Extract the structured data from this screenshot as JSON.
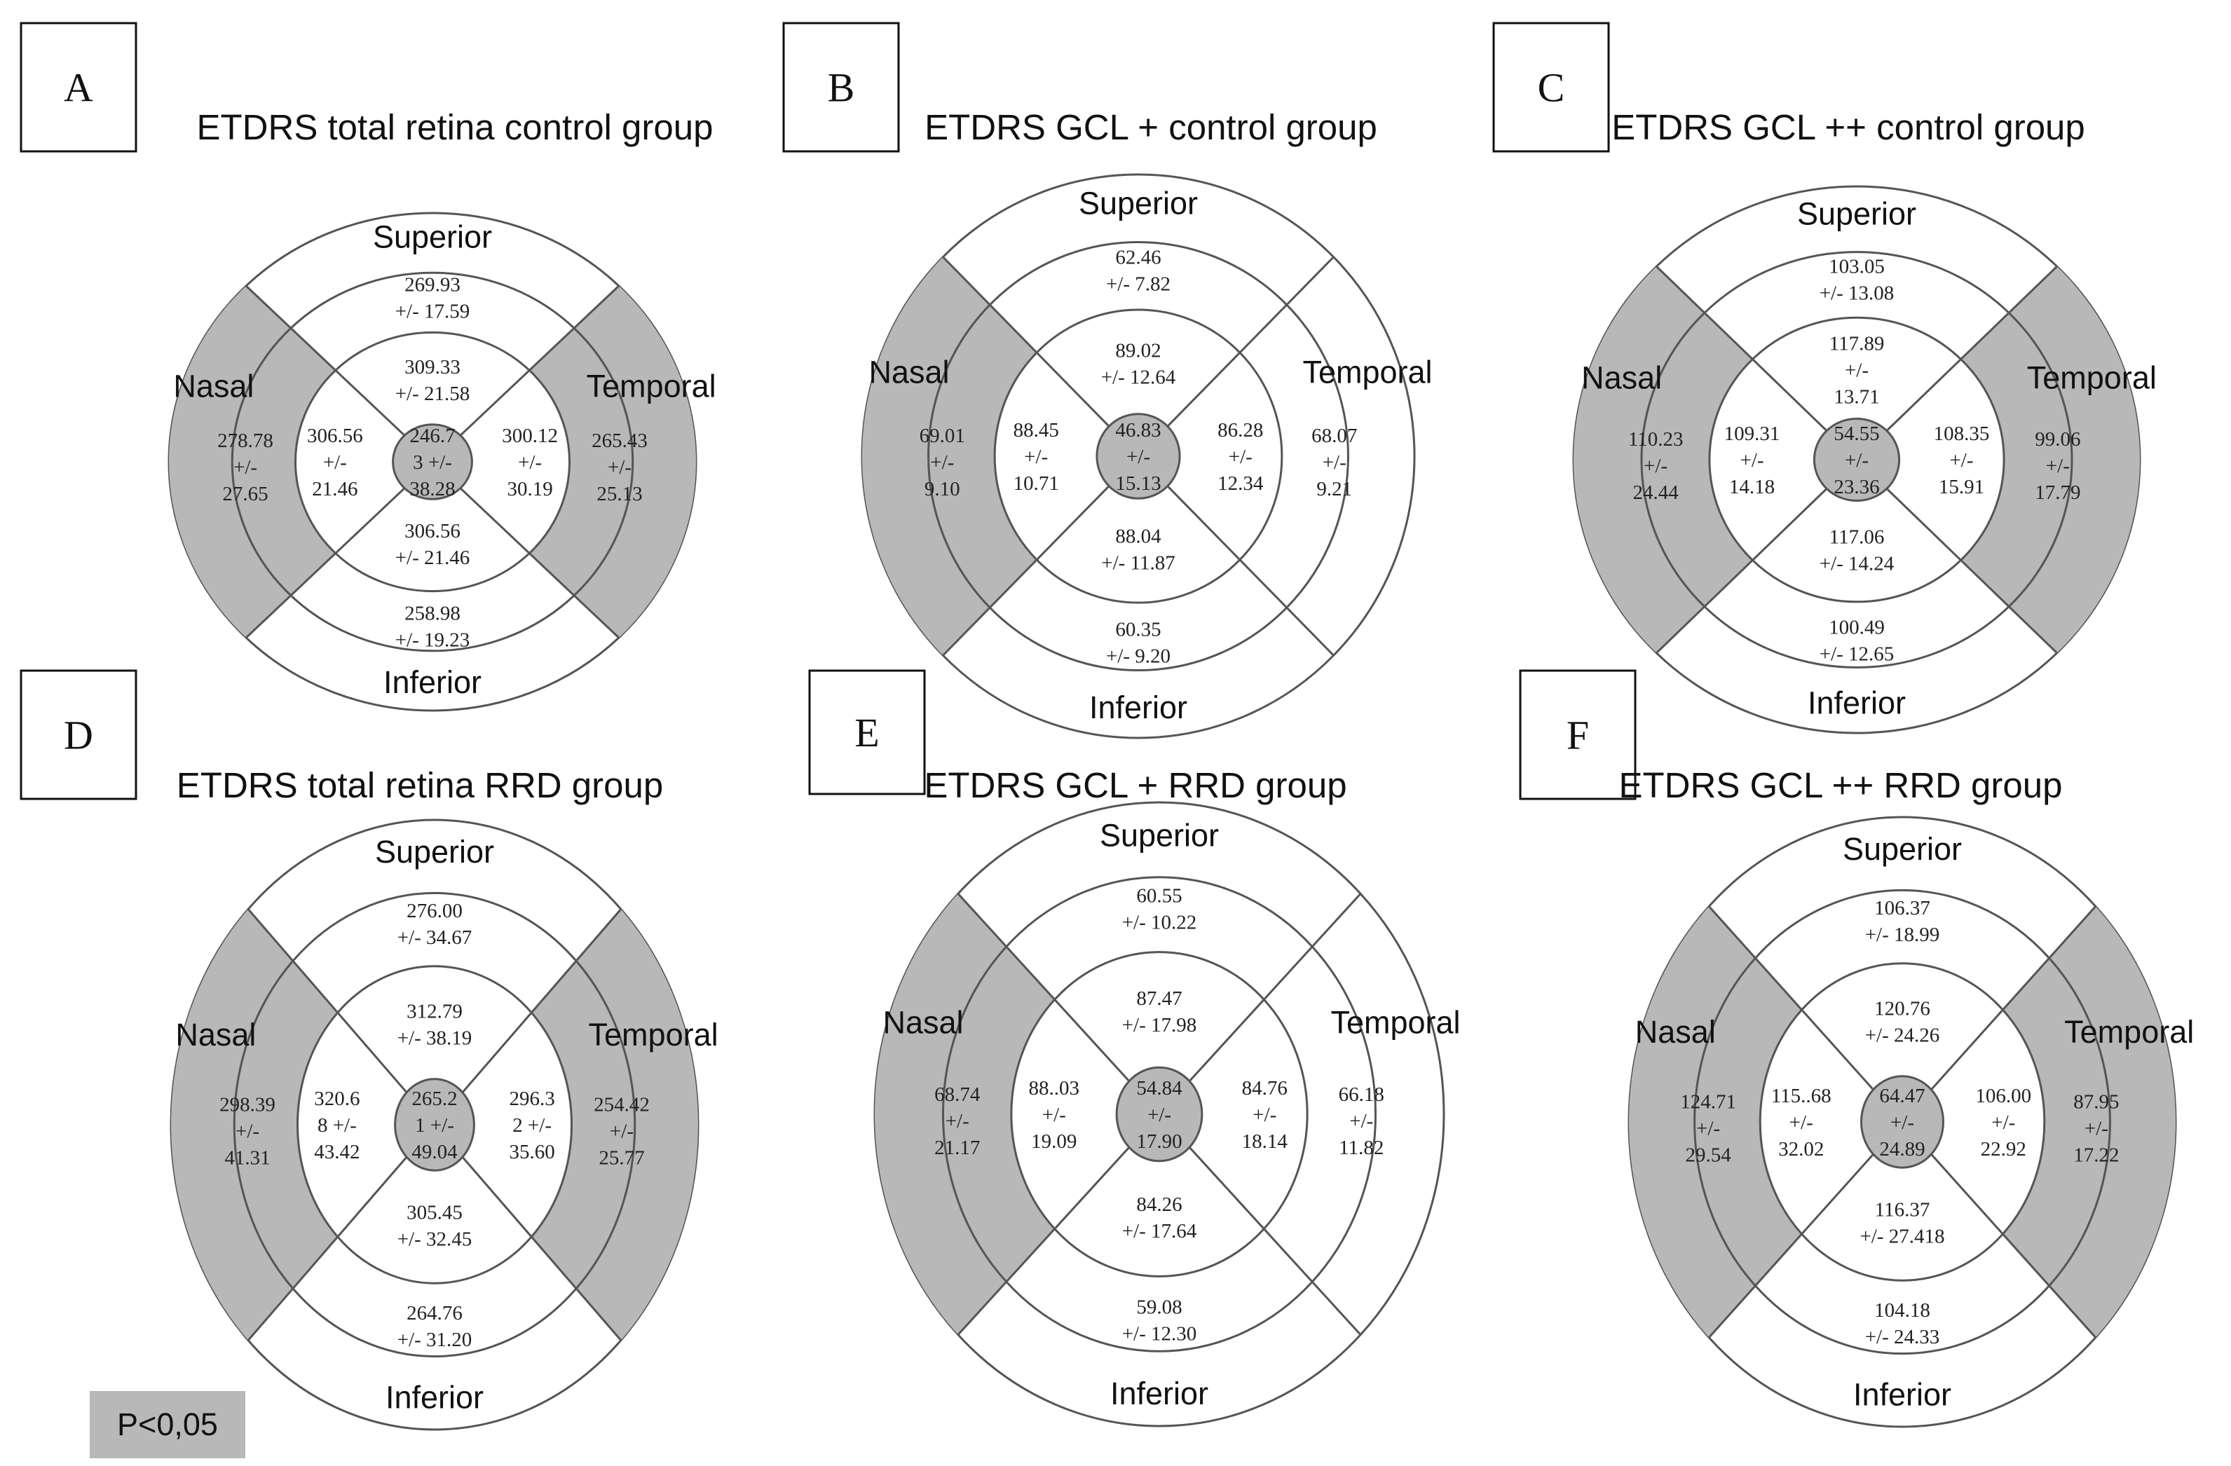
{
  "colors": {
    "highlight": "#b8b8b8",
    "stroke": "#555555",
    "background": "#ffffff"
  },
  "direction_labels": {
    "superior": "Superior",
    "inferior": "Inferior",
    "nasal": "Nasal",
    "temporal": "Temporal"
  },
  "legend": {
    "text": "P<0,05",
    "meaning": "grey fill marks sectors with P<0,05"
  },
  "panels": [
    {
      "label": "A",
      "title": "ETDRS total retina control group",
      "highlighted": [
        "center",
        "outer_nasal",
        "outer_temporal"
      ],
      "values": {
        "center": [
          "246.7",
          "3 +/-",
          "38.28"
        ],
        "inner_superior": [
          "309.33",
          "+/- 21.58"
        ],
        "inner_inferior": [
          "306.56",
          "+/- 21.46"
        ],
        "inner_nasal": [
          "306.56",
          "+/-",
          "21.46"
        ],
        "inner_temporal": [
          "300.12",
          "+/-",
          "30.19"
        ],
        "outer_superior": [
          "269.93",
          "+/- 17.59"
        ],
        "outer_inferior": [
          "258.98",
          "+/- 19.23"
        ],
        "outer_nasal": [
          "278.78",
          "+/-",
          "27.65"
        ],
        "outer_temporal": [
          "265.43",
          "+/-",
          "25.13"
        ]
      }
    },
    {
      "label": "B",
      "title": "ETDRS GCL + control group",
      "highlighted": [
        "center",
        "outer_nasal"
      ],
      "values": {
        "center": [
          "46.83",
          "+/-",
          "15.13"
        ],
        "inner_superior": [
          "89.02",
          "+/- 12.64"
        ],
        "inner_inferior": [
          "88.04",
          "+/- 11.87"
        ],
        "inner_nasal": [
          "88.45",
          "+/-",
          "10.71"
        ],
        "inner_temporal": [
          "86.28",
          "+/-",
          "12.34"
        ],
        "outer_superior": [
          "62.46",
          "+/- 7.82"
        ],
        "outer_inferior": [
          "60.35",
          "+/- 9.20"
        ],
        "outer_nasal": [
          "69.01",
          "+/-",
          "9.10"
        ],
        "outer_temporal": [
          "68.07",
          "+/-",
          "9.21"
        ]
      }
    },
    {
      "label": "C",
      "title": "ETDRS GCL ++ control group",
      "highlighted": [
        "center",
        "outer_nasal",
        "outer_temporal"
      ],
      "values": {
        "center": [
          "54.55",
          "+/-",
          "23.36"
        ],
        "inner_superior": [
          "117.89",
          "+/-",
          "13.71"
        ],
        "inner_inferior": [
          "117.06",
          "+/- 14.24"
        ],
        "inner_nasal": [
          "109.31",
          "+/-",
          "14.18"
        ],
        "inner_temporal": [
          "108.35",
          "+/-",
          "15.91"
        ],
        "outer_superior": [
          "103.05",
          "+/- 13.08"
        ],
        "outer_inferior": [
          "100.49",
          "+/- 12.65"
        ],
        "outer_nasal": [
          "110.23",
          "+/-",
          "24.44"
        ],
        "outer_temporal": [
          "99.06",
          "+/-",
          "17.79"
        ]
      }
    },
    {
      "label": "D",
      "title": "ETDRS total retina RRD group",
      "highlighted": [
        "center",
        "outer_nasal",
        "outer_temporal"
      ],
      "values": {
        "center": [
          "265.2",
          "1 +/-",
          "49.04"
        ],
        "inner_superior": [
          "312.79",
          "+/- 38.19"
        ],
        "inner_inferior": [
          "305.45",
          "+/- 32.45"
        ],
        "inner_nasal": [
          "320.6",
          "8 +/-",
          "43.42"
        ],
        "inner_temporal": [
          "296.3",
          "2 +/-",
          "35.60"
        ],
        "outer_superior": [
          "276.00",
          "+/- 34.67"
        ],
        "outer_inferior": [
          "264.76",
          "+/- 31.20"
        ],
        "outer_nasal": [
          "298.39",
          "+/-",
          "41.31"
        ],
        "outer_temporal": [
          "254.42",
          "+/-",
          "25.77"
        ]
      }
    },
    {
      "label": "E",
      "title": "ETDRS GCL + RRD group",
      "highlighted": [
        "center",
        "outer_nasal"
      ],
      "values": {
        "center": [
          "54.84",
          "+/-",
          "17.90"
        ],
        "inner_superior": [
          "87.47",
          "+/- 17.98"
        ],
        "inner_inferior": [
          "84.26",
          "+/- 17.64"
        ],
        "inner_nasal": [
          "88..03",
          "+/-",
          "19.09"
        ],
        "inner_temporal": [
          "84.76",
          "+/-",
          "18.14"
        ],
        "outer_superior": [
          "60.55",
          "+/- 10.22"
        ],
        "outer_inferior": [
          "59.08",
          "+/- 12.30"
        ],
        "outer_nasal": [
          "68.74",
          "+/-",
          "21.17"
        ],
        "outer_temporal": [
          "66.18",
          "+/-",
          "11.82"
        ]
      }
    },
    {
      "label": "F",
      "title": "ETDRS GCL ++ RRD group",
      "highlighted": [
        "center",
        "outer_nasal",
        "outer_temporal"
      ],
      "values": {
        "center": [
          "64.47",
          "+/-",
          "24.89"
        ],
        "inner_superior": [
          "120.76",
          "+/- 24.26"
        ],
        "inner_inferior": [
          "116.37",
          "+/- 27.418"
        ],
        "inner_nasal": [
          "115..68",
          "+/-",
          "32.02"
        ],
        "inner_temporal": [
          "106.00",
          "+/-",
          "22.92"
        ],
        "outer_superior": [
          "106.37",
          "+/- 18.99"
        ],
        "outer_inferior": [
          "104.18",
          "+/- 24.33"
        ],
        "outer_nasal": [
          "124.71",
          "+/-",
          "29.54"
        ],
        "outer_temporal": [
          "87.95",
          "+/-",
          "17.22"
        ]
      }
    }
  ]
}
